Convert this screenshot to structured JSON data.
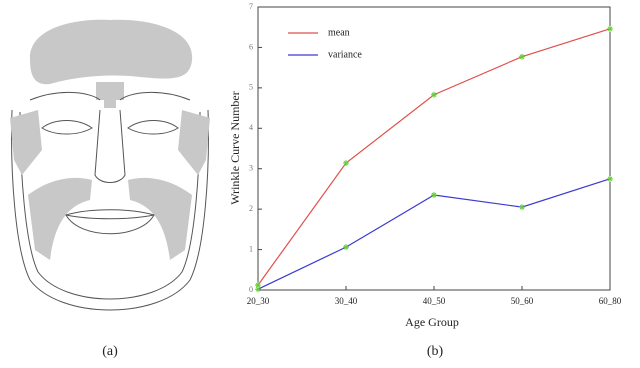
{
  "figure": {
    "panel_labels": [
      "(a)",
      "(b)"
    ]
  },
  "chart_data": {
    "type": "line",
    "xlabel": "Age Group",
    "ylabel": "Wrinkle Curve Number",
    "categories": [
      "20_30",
      "30_40",
      "40_50",
      "50_60",
      "60_80"
    ],
    "series": [
      {
        "name": "mean",
        "color": "#e0504a",
        "values": [
          0.12,
          3.14,
          4.83,
          5.77,
          6.46
        ]
      },
      {
        "name": "variance",
        "color": "#3a3ad0",
        "values": [
          0.02,
          1.06,
          2.35,
          2.05,
          2.75
        ]
      }
    ],
    "marker_color": "#66cc33",
    "ylim": [
      0,
      7
    ],
    "yticks": [
      0,
      1,
      2,
      3,
      4,
      5,
      6,
      7
    ],
    "grid": false,
    "legend": "upper-left"
  }
}
